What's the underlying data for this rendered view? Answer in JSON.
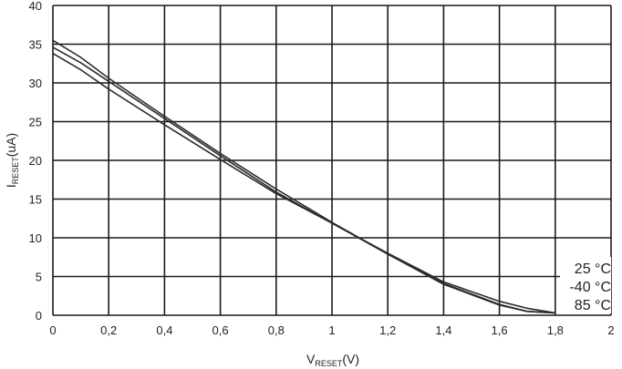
{
  "chart_data": {
    "type": "line",
    "xlabel": {
      "main": "V",
      "sub": "RESET",
      "unit": "(V)"
    },
    "ylabel": {
      "main": "I",
      "sub": "RESET",
      "unit": "(uA)"
    },
    "xlim": [
      0,
      2
    ],
    "ylim": [
      0,
      40
    ],
    "grid": true,
    "x_ticks": [
      "0",
      "0,2",
      "0,4",
      "0,6",
      "0,8",
      "1",
      "1,2",
      "1,4",
      "1,6",
      "1,8",
      "2"
    ],
    "x_tick_values": [
      0,
      0.2,
      0.4,
      0.6,
      0.8,
      1.0,
      1.2,
      1.4,
      1.6,
      1.8,
      2.0
    ],
    "y_ticks": [
      "0",
      "5",
      "10",
      "15",
      "20",
      "25",
      "30",
      "35",
      "40"
    ],
    "y_tick_values": [
      0,
      5,
      10,
      15,
      20,
      25,
      30,
      35,
      40
    ],
    "legend_placement": "bottom-right",
    "series": [
      {
        "name": "25 °C",
        "x": [
          0,
          0.1,
          0.2,
          0.4,
          0.6,
          0.8,
          1.0,
          1.2,
          1.4,
          1.6,
          1.7,
          1.8
        ],
        "y": [
          34.6,
          32.6,
          30.2,
          25.4,
          20.6,
          15.9,
          11.9,
          7.9,
          4.1,
          1.4,
          0.5,
          0.3
        ]
      },
      {
        "name": "-40 °C",
        "x": [
          0,
          0.1,
          0.2,
          0.4,
          0.6,
          0.8,
          1.0,
          1.2,
          1.4,
          1.6,
          1.7,
          1.8
        ],
        "y": [
          35.5,
          33.3,
          30.6,
          25.7,
          20.9,
          16.3,
          12.0,
          7.9,
          4.0,
          1.3,
          0.5,
          0.3
        ]
      },
      {
        "name": "85 °C",
        "x": [
          0,
          0.1,
          0.2,
          0.4,
          0.6,
          0.8,
          1.0,
          1.2,
          1.4,
          1.6,
          1.7,
          1.8
        ],
        "y": [
          33.8,
          31.7,
          29.2,
          24.6,
          20.1,
          15.7,
          11.9,
          8.0,
          4.3,
          1.8,
          0.9,
          0.3
        ]
      }
    ],
    "line_color": "#2b2b2b",
    "grid_color": "#1a1a1a"
  }
}
